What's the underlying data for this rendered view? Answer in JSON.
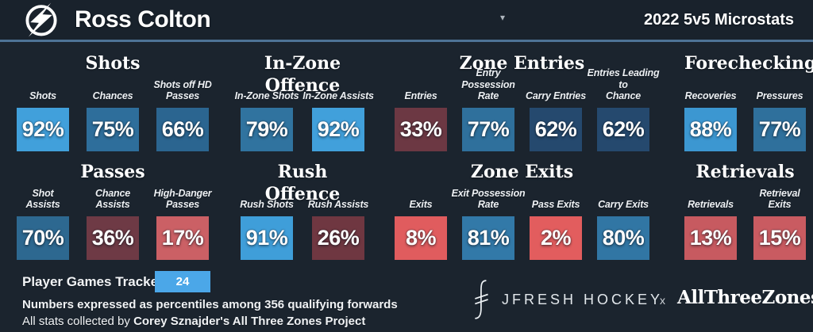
{
  "colors": {
    "background": "#1B242E",
    "header_background": "#19222C",
    "header_rule": "#4E7396",
    "games_box": "#4BA7E8"
  },
  "header": {
    "team_logo": "tampa-bay-lightning",
    "player_name": "Ross Colton",
    "dropdown_caret": "▾",
    "season_title": "2022 5v5 Microstats"
  },
  "sections": [
    {
      "row": 1,
      "title": "Shots",
      "stats": [
        {
          "label": "Shots",
          "value": "92%",
          "color": "#41A0DB"
        },
        {
          "label": "Chances",
          "value": "75%",
          "color": "#2E6E9B"
        },
        {
          "label": "Shots off HD\nPasses",
          "value": "66%",
          "color": "#2B6590"
        }
      ]
    },
    {
      "row": 1,
      "title": "In-Zone Offence",
      "stats": [
        {
          "label": "In-Zone Shots",
          "value": "79%",
          "color": "#30739F"
        },
        {
          "label": "In-Zone Assists",
          "value": "92%",
          "color": "#41A0DB"
        }
      ]
    },
    {
      "row": 1,
      "title": "Zone Entries",
      "stats": [
        {
          "label": "Entries",
          "value": "33%",
          "color": "#6C3843"
        },
        {
          "label": "Entry Possession\nRate",
          "value": "77%",
          "color": "#2F709C"
        },
        {
          "label": "Carry Entries",
          "value": "62%",
          "color": "#25496E"
        },
        {
          "label": "Entries Leading to\nChance",
          "value": "62%",
          "color": "#25496E"
        }
      ]
    },
    {
      "row": 1,
      "title": "Forechecking",
      "stats": [
        {
          "label": "Recoveries",
          "value": "88%",
          "color": "#3C97D1"
        },
        {
          "label": "Pressures",
          "value": "77%",
          "color": "#2F709C"
        }
      ]
    },
    {
      "row": 2,
      "title": "Passes",
      "stats": [
        {
          "label": "Shot\nAssists",
          "value": "70%",
          "color": "#2D6890"
        },
        {
          "label": "Chance\nAssists",
          "value": "36%",
          "color": "#6E3A45"
        },
        {
          "label": "High-Danger\nPasses",
          "value": "17%",
          "color": "#CB6065"
        }
      ]
    },
    {
      "row": 2,
      "title": "Rush Offence",
      "stats": [
        {
          "label": "Rush Shots",
          "value": "91%",
          "color": "#3F9ED9"
        },
        {
          "label": "Rush Assists",
          "value": "26%",
          "color": "#6F3741"
        }
      ]
    },
    {
      "row": 2,
      "title": "Zone Exits",
      "stats": [
        {
          "label": "Exits",
          "value": "8%",
          "color": "#E05C5E"
        },
        {
          "label": "Exit Possession\nRate",
          "value": "81%",
          "color": "#3279A8"
        },
        {
          "label": "Pass Exits",
          "value": "2%",
          "color": "#E25D5E"
        },
        {
          "label": "Carry Exits",
          "value": "80%",
          "color": "#3176A4"
        }
      ]
    },
    {
      "row": 2,
      "title": "Retrievals",
      "stats": [
        {
          "label": "Retrievals",
          "value": "13%",
          "color": "#C75A60"
        },
        {
          "label": "Retrieval\nExits",
          "value": "15%",
          "color": "#C95B61"
        }
      ]
    }
  ],
  "footer": {
    "games_tracked_label": "Player Games Tracked:",
    "games_tracked_value": "24",
    "percentile_note": "Numbers expressed as percentiles among 356 qualifying forwards",
    "credit_prefix": "All stats collected by ",
    "credit_bold": "Corey Sznajder's All Three Zones Project",
    "brand_name": "JFRESH HOCKEY",
    "brand_separator": "x",
    "brand_partner": "AllThreeZones"
  }
}
